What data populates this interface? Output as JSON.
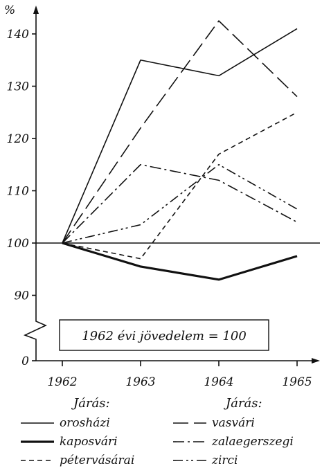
{
  "chart_data": {
    "type": "line",
    "y_unit": "%",
    "categories": [
      "1962",
      "1963",
      "1964",
      "1965"
    ],
    "yticks": [
      0,
      90,
      100,
      110,
      120,
      130,
      140
    ],
    "ylim": [
      0,
      142
    ],
    "axis_break": [
      0,
      90
    ],
    "reference_line": 100,
    "annotation": "1962 évi jövedelem = 100",
    "legend_header_left": "Járás:",
    "legend_header_right": "Járás:",
    "grid": false,
    "legend_placement": "bottom",
    "series": [
      {
        "name": "orosházi",
        "style": "solid",
        "values": [
          100,
          135,
          132,
          141
        ]
      },
      {
        "name": "kaposvári",
        "style": "solid-thick",
        "values": [
          100,
          95.5,
          93,
          97.5
        ]
      },
      {
        "name": "pétervásárai",
        "style": "dashed",
        "values": [
          100,
          97,
          117,
          125
        ]
      },
      {
        "name": "vasvári",
        "style": "long-dash",
        "values": [
          100,
          122,
          142.5,
          128
        ]
      },
      {
        "name": "zalaegerszegi",
        "style": "dash-dot",
        "values": [
          100,
          115,
          112,
          104
        ]
      },
      {
        "name": "zirci",
        "style": "dash-dot-dot",
        "values": [
          100,
          103.5,
          115,
          106.5
        ]
      }
    ]
  }
}
